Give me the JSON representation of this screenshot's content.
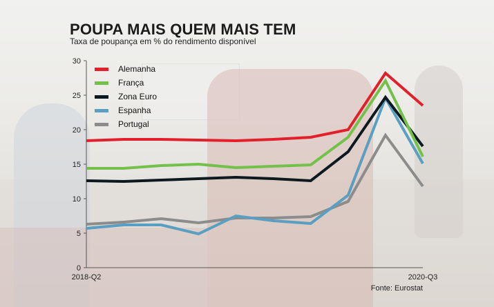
{
  "header": {
    "title": "POUPA MAIS QUEM MAIS TEM",
    "subtitle": "Taxa de poupança em % do rendimento disponível"
  },
  "footer": {
    "source": "Fonte: Eurostat"
  },
  "chart_data": {
    "type": "line",
    "x": [
      "2018-Q2",
      "2018-Q3",
      "2018-Q4",
      "2019-Q1",
      "2019-Q2",
      "2019-Q3",
      "2019-Q4",
      "2020-Q1",
      "2020-Q2",
      "2020-Q3"
    ],
    "x_tick_labels": [
      {
        "index": 0,
        "label": "2018-Q2"
      },
      {
        "index": 9,
        "label": "2020-Q3"
      }
    ],
    "ylim": [
      0,
      30
    ],
    "yticks": [
      0,
      5,
      10,
      15,
      20,
      25,
      30
    ],
    "grid": false,
    "legend_position": "top-left",
    "series": [
      {
        "name": "Alemanha",
        "color": "#e2202b",
        "values": [
          18.4,
          18.6,
          18.6,
          18.5,
          18.4,
          18.6,
          18.9,
          20.0,
          28.2,
          23.5
        ]
      },
      {
        "name": "França",
        "color": "#73c14b",
        "values": [
          14.4,
          14.4,
          14.8,
          15.0,
          14.5,
          14.7,
          14.9,
          18.9,
          27.1,
          16.1
        ]
      },
      {
        "name": "Zona Euro",
        "color": "#0c1a1f",
        "values": [
          12.6,
          12.5,
          12.7,
          12.9,
          13.1,
          12.9,
          12.6,
          16.8,
          24.7,
          17.6
        ]
      },
      {
        "name": "Espanha",
        "color": "#5a9fc2",
        "values": [
          5.7,
          6.2,
          6.2,
          4.9,
          7.5,
          6.8,
          6.4,
          10.5,
          24.6,
          15.1
        ]
      },
      {
        "name": "Portugal",
        "color": "#8c8c8c",
        "values": [
          6.3,
          6.6,
          7.1,
          6.5,
          7.2,
          7.2,
          7.4,
          9.6,
          19.2,
          11.8
        ]
      }
    ]
  }
}
